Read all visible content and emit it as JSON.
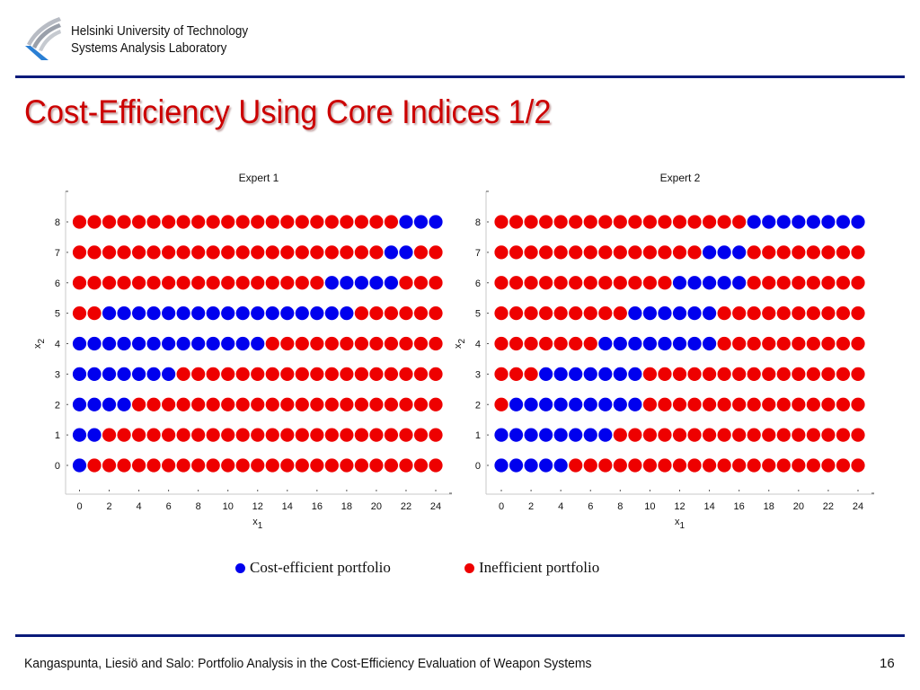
{
  "header": {
    "org_line1": "Helsinki University of Technology",
    "org_line2": "Systems Analysis Laboratory",
    "logo_icon": "university-logo-icon"
  },
  "slide": {
    "title": "Cost-Efficiency Using Core Indices 1/2"
  },
  "colors": {
    "efficient": "#0000ee",
    "inefficient": "#ee0000",
    "title": "#cc0000",
    "rule": "#0a1a7a"
  },
  "legend": {
    "efficient_label": "Cost-efficient portfolio",
    "inefficient_label": "Inefficient portfolio"
  },
  "chart_data": [
    {
      "type": "scatter",
      "title": "Expert 1",
      "xlabel": "x1",
      "ylabel": "x2",
      "xlim": [
        0,
        24
      ],
      "ylim": [
        0,
        8
      ],
      "xticks": [
        0,
        2,
        4,
        6,
        8,
        10,
        12,
        14,
        16,
        18,
        20,
        22,
        24
      ],
      "yticks": [
        0,
        1,
        2,
        3,
        4,
        5,
        6,
        7,
        8
      ],
      "grid": false,
      "description": "Each point (x1, x2) for x1 in 0..24 and x2 in 0..8 is a portfolio; listed x1 values per x2 are cost-efficient (blue), all others inefficient (red)",
      "efficient_by_x2": {
        "0": [
          0
        ],
        "1": [
          0,
          1
        ],
        "2": [
          0,
          1,
          2,
          3
        ],
        "3": [
          0,
          1,
          2,
          3,
          4,
          5,
          6
        ],
        "4": [
          0,
          1,
          2,
          3,
          4,
          5,
          6,
          7,
          8,
          9,
          10,
          11,
          12
        ],
        "5": [
          2,
          3,
          4,
          5,
          6,
          7,
          8,
          9,
          10,
          11,
          12,
          13,
          14,
          15,
          16,
          17,
          18
        ],
        "6": [
          17,
          18,
          19,
          20,
          21
        ],
        "7": [
          21,
          22
        ],
        "8": [
          22,
          23,
          24
        ]
      }
    },
    {
      "type": "scatter",
      "title": "Expert 2",
      "xlabel": "x1",
      "ylabel": "x2",
      "xlim": [
        0,
        24
      ],
      "ylim": [
        0,
        8
      ],
      "xticks": [
        0,
        2,
        4,
        6,
        8,
        10,
        12,
        14,
        16,
        18,
        20,
        22,
        24
      ],
      "yticks": [
        0,
        1,
        2,
        3,
        4,
        5,
        6,
        7,
        8
      ],
      "grid": false,
      "description": "Each point (x1, x2) for x1 in 0..24 and x2 in 0..8 is a portfolio; listed x1 values per x2 are cost-efficient (blue), all others inefficient (red)",
      "efficient_by_x2": {
        "0": [
          0,
          1,
          2,
          3,
          4
        ],
        "1": [
          0,
          1,
          2,
          3,
          4,
          5,
          6,
          7
        ],
        "2": [
          1,
          2,
          3,
          4,
          5,
          6,
          7,
          8,
          9
        ],
        "3": [
          3,
          4,
          5,
          6,
          7,
          8,
          9
        ],
        "4": [
          7,
          8,
          9,
          10,
          11,
          12,
          13,
          14
        ],
        "5": [
          9,
          10,
          11,
          12,
          13,
          14
        ],
        "6": [
          12,
          13,
          14,
          15,
          16
        ],
        "7": [
          14,
          15,
          16
        ],
        "8": [
          17,
          18,
          19,
          20,
          21,
          22,
          23,
          24
        ]
      }
    }
  ],
  "footer": {
    "citation": "Kangaspunta, Liesiö and Salo: Portfolio Analysis in the Cost-Efficiency Evaluation of Weapon Systems",
    "page_number": "16"
  }
}
